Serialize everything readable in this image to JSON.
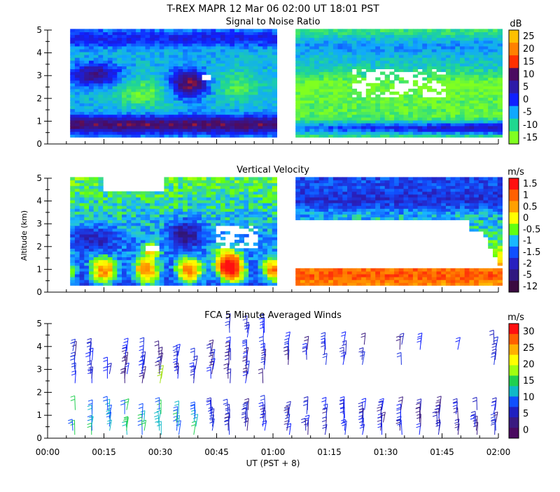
{
  "header": {
    "title": "T-REX   MAPR 12 Mar 06   02:00 UT   18:01   PST"
  },
  "x_axis": {
    "label": "UT  (PST + 8)",
    "ticks": [
      "00:00",
      "00:15",
      "00:30",
      "00:45",
      "01:00",
      "01:15",
      "01:30",
      "01:45",
      "02:00"
    ]
  },
  "y_axis_label": "Altitude (km)",
  "chart_data": [
    {
      "type": "heatmap",
      "title": "Signal to Noise Ratio",
      "units": "dB",
      "xlim_minutes": [
        0,
        120
      ],
      "ylim_km": [
        0,
        5
      ],
      "yticks": [
        "0",
        "1",
        "2",
        "3",
        "4",
        "5"
      ],
      "data_gaps_minutes": [
        [
          0,
          6
        ],
        [
          60,
          65
        ]
      ],
      "colorbar": {
        "labels": [
          "25",
          "20",
          "15",
          "10",
          "5",
          "0",
          "-5",
          "-10",
          "-15"
        ],
        "colors": [
          "#ffc000",
          "#ff8000",
          "#ff3000",
          "#4b0b60",
          "#2c1ba8",
          "#1020ff",
          "#10a8ff",
          "#20d890",
          "#80ff20"
        ]
      }
    },
    {
      "type": "heatmap",
      "title": "Vertical Velocity",
      "units": "m/s",
      "xlim_minutes": [
        0,
        120
      ],
      "ylim_km": [
        0,
        5
      ],
      "yticks": [
        "0",
        "1",
        "2",
        "3",
        "4",
        "5"
      ],
      "data_gaps_minutes": [
        [
          0,
          6
        ],
        [
          60,
          65
        ]
      ],
      "colorbar": {
        "labels": [
          "1.5",
          "1",
          "0.5",
          "0",
          "-0.5",
          "-1",
          "-1.5",
          "-2",
          "-5",
          "-12"
        ],
        "colors": [
          "#ff1010",
          "#ff6000",
          "#ffa000",
          "#ffff00",
          "#60ff10",
          "#18b8ff",
          "#1050ff",
          "#2820c0",
          "#301880",
          "#3a0a40"
        ]
      }
    },
    {
      "type": "wind_barbs",
      "title": "FCA 5 Minute Averaged Winds",
      "units": "m/s",
      "xlim_minutes": [
        0,
        120
      ],
      "ylim_km": [
        0,
        5
      ],
      "yticks": [
        "0",
        "1",
        "2",
        "3",
        "4",
        "5"
      ],
      "colorbar": {
        "labels": [
          "30",
          "25",
          "20",
          "15",
          "10",
          "5",
          "0"
        ],
        "colors": [
          "#ff1010",
          "#ff6000",
          "#ffb000",
          "#ffff00",
          "#a0ff10",
          "#20d050",
          "#10b8c8",
          "#1050ff",
          "#2020c0",
          "#3a1a80",
          "#4a0a60"
        ]
      }
    }
  ]
}
